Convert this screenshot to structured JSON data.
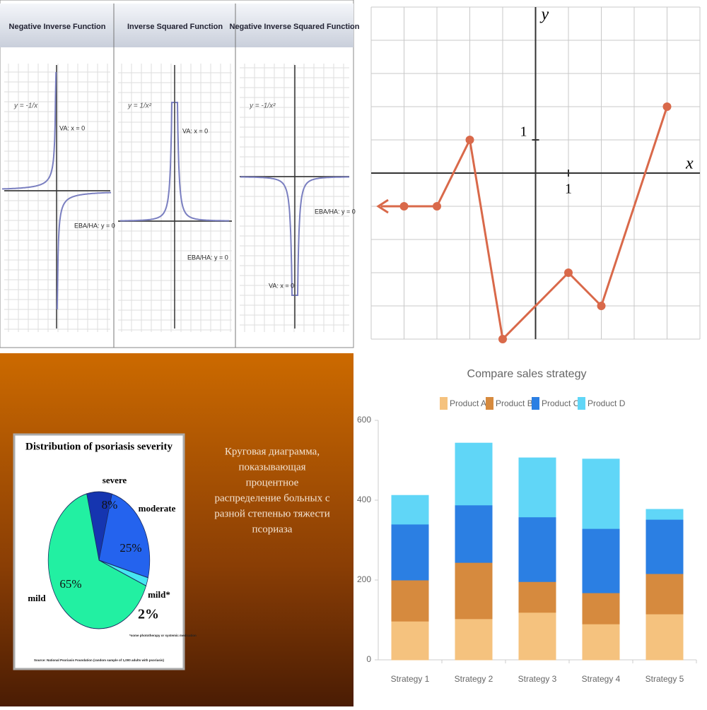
{
  "function_graphs": {
    "panels": [
      {
        "title": "Negative Inverse Function",
        "equation": "y = -1/x",
        "labels": [
          "VA: x = 0",
          "EBA/HA: y = 0"
        ]
      },
      {
        "title": "Inverse Squared Function",
        "equation": "y = 1/x²",
        "labels": [
          "VA: x = 0",
          "EBA/HA: y = 0"
        ]
      },
      {
        "title": "Negative Inverse Squared Function",
        "equation": "y = -1/x²",
        "labels": [
          "EBA/HA: y = 0",
          "VA: x = 0"
        ]
      }
    ]
  },
  "slide": {
    "text_lines": [
      "Круговая диаграмма,",
      "показывающая",
      "процентное",
      "распределение больных с",
      "разной степенью тяжести",
      "псориаза"
    ]
  },
  "chart_data": [
    {
      "type": "line",
      "x": [
        -4,
        -3,
        -2,
        -1,
        1,
        2,
        4
      ],
      "values": [
        -1,
        -1,
        1,
        -5,
        -3,
        -4,
        2
      ],
      "color": "#d9694a",
      "xlim": [
        -5,
        5
      ],
      "ylim": [
        -5,
        5
      ],
      "xticks": [
        1
      ],
      "yticks": [
        1
      ],
      "x_label": "x",
      "y_label": "y",
      "grid": true
    },
    {
      "type": "pie",
      "title": "Distribution of psoriasis severity",
      "categories": [
        "severe",
        "moderate",
        "mild*",
        "mild"
      ],
      "values": [
        8,
        25,
        2,
        65
      ],
      "value_labels": [
        "8%",
        "25%",
        "2%",
        "65%"
      ],
      "colors": [
        "#1535b0",
        "#2463ee",
        "#46e6f2",
        "#22f0a2"
      ],
      "notes": [
        "*some phototherapy or systemic medication",
        "Source: National Psoriasis Foundation (random sample of 1,000 adults with psoriasis)"
      ]
    },
    {
      "type": "stacked_bar",
      "title": "Compare sales strategy",
      "categories": [
        "Strategy 1",
        "Strategy 2",
        "Strategy 3",
        "Strategy 4",
        "Strategy 5"
      ],
      "series": [
        {
          "name": "Product A",
          "color": "#f5c27e",
          "values": [
            97,
            103,
            119,
            90,
            115
          ]
        },
        {
          "name": "Product B",
          "color": "#d68a3e",
          "values": [
            103,
            141,
            77,
            78,
            101
          ]
        },
        {
          "name": "Product C",
          "color": "#2b7fe3",
          "values": [
            140,
            144,
            162,
            161,
            136
          ]
        },
        {
          "name": "Product D",
          "color": "#60d6f7",
          "values": [
            72,
            155,
            148,
            174,
            25
          ]
        }
      ],
      "ylim": [
        0,
        600
      ],
      "yticks": [
        0,
        200,
        400,
        600
      ],
      "legend": "top"
    }
  ]
}
